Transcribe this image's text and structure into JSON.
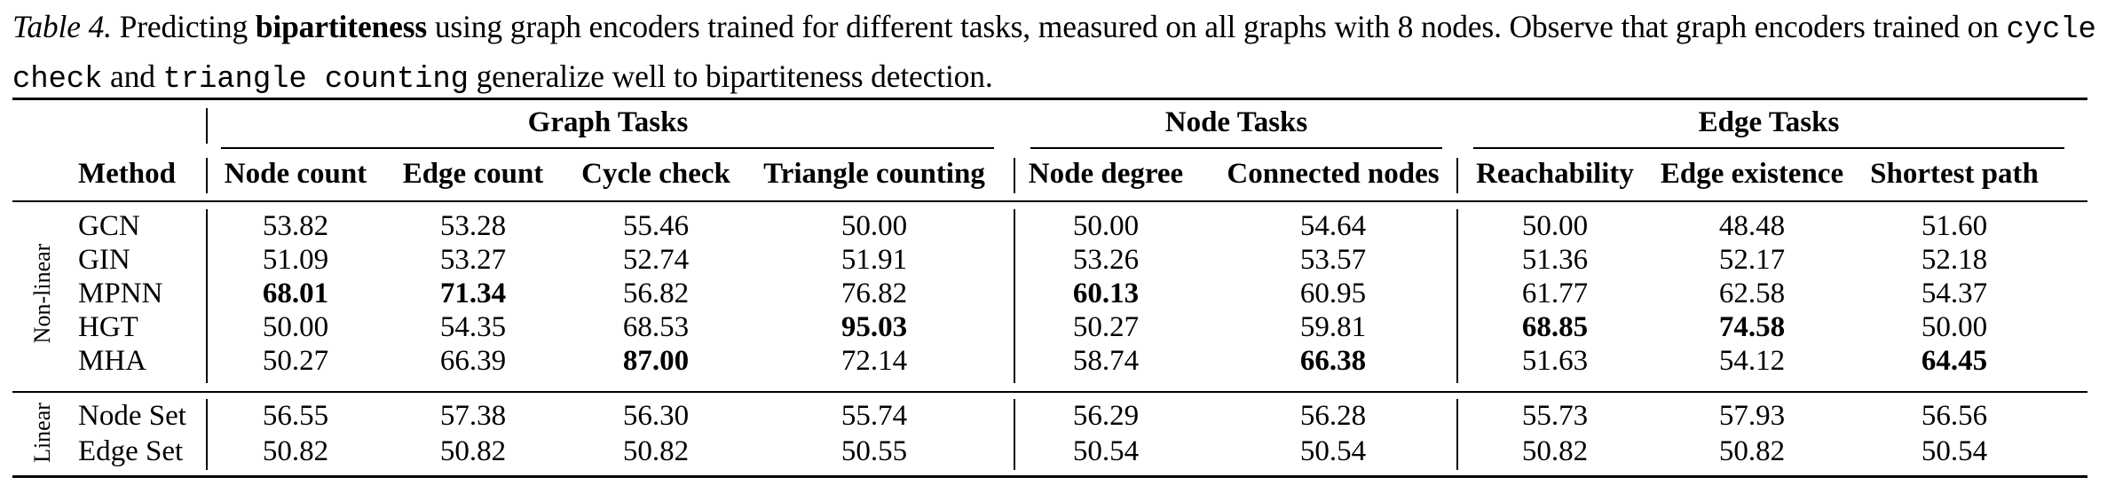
{
  "caption": {
    "label": "Table 4.",
    "text_1": " Predicting ",
    "bold_word": "bipartiteness",
    "text_2": " using graph encoders trained for different tasks, measured on all graphs with 8 nodes. Observe that graph encoders trained on ",
    "code_1": "cycle check",
    "text_3": " and ",
    "code_2": "triangle counting",
    "text_4": " generalize well to bipartiteness detection."
  },
  "table": {
    "groups": [
      "Graph Tasks",
      "Node Tasks",
      "Edge Tasks"
    ],
    "method_header": "Method",
    "columns": [
      "Node count",
      "Edge count",
      "Cycle check",
      "Triangle counting",
      "Node degree",
      "Connected nodes",
      "Reachability",
      "Edge existence",
      "Shortest path"
    ],
    "row_groups": [
      "Non-linear",
      "Linear"
    ],
    "rows": [
      {
        "method": "GCN",
        "values": [
          "53.82",
          "53.28",
          "55.46",
          "50.00",
          "50.00",
          "54.64",
          "50.00",
          "48.48",
          "51.60"
        ],
        "bold": []
      },
      {
        "method": "GIN",
        "values": [
          "51.09",
          "53.27",
          "52.74",
          "51.91",
          "53.26",
          "53.57",
          "51.36",
          "52.17",
          "52.18"
        ],
        "bold": []
      },
      {
        "method": "MPNN",
        "values": [
          "68.01",
          "71.34",
          "56.82",
          "76.82",
          "60.13",
          "60.95",
          "61.77",
          "62.58",
          "54.37"
        ],
        "bold": [
          0,
          1,
          4
        ]
      },
      {
        "method": "HGT",
        "values": [
          "50.00",
          "54.35",
          "68.53",
          "95.03",
          "50.27",
          "59.81",
          "68.85",
          "74.58",
          "50.00"
        ],
        "bold": [
          3,
          6,
          7
        ]
      },
      {
        "method": "MHA",
        "values": [
          "50.27",
          "66.39",
          "87.00",
          "72.14",
          "58.74",
          "66.38",
          "51.63",
          "54.12",
          "64.45"
        ],
        "bold": [
          2,
          5,
          8
        ]
      },
      {
        "method": "Node Set",
        "values": [
          "56.55",
          "57.38",
          "56.30",
          "55.74",
          "56.29",
          "56.28",
          "55.73",
          "57.93",
          "56.56"
        ],
        "bold": []
      },
      {
        "method": "Edge Set",
        "values": [
          "50.82",
          "50.82",
          "50.82",
          "50.55",
          "50.54",
          "50.54",
          "50.82",
          "50.82",
          "50.54"
        ],
        "bold": []
      }
    ]
  }
}
